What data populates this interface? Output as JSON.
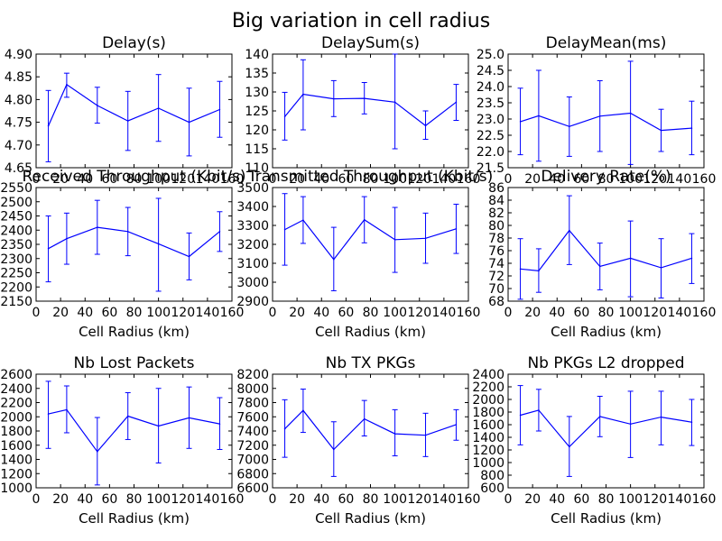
{
  "figure_title": "Big variation in cell radius",
  "series_color": "#0000ff",
  "chart_data": [
    {
      "type": "line",
      "title": "Delay(s)",
      "xlabel": "Cell Radius (km)",
      "ylabel": "",
      "xlim": [
        0,
        160
      ],
      "ylim": [
        4.65,
        4.9
      ],
      "xticks": [
        0,
        20,
        40,
        60,
        80,
        100,
        120,
        140,
        160
      ],
      "yticks": [
        4.65,
        4.7,
        4.75,
        4.8,
        4.85,
        4.9
      ],
      "ytick_labels": [
        "4.65",
        "4.70",
        "4.75",
        "4.80",
        "4.85",
        "4.90"
      ],
      "x": [
        10,
        25,
        50,
        75,
        100,
        125,
        150
      ],
      "y": [
        4.742,
        4.833,
        4.787,
        4.753,
        4.781,
        4.75,
        4.778
      ],
      "err_low": [
        4.663,
        4.805,
        4.748,
        4.688,
        4.708,
        4.676,
        4.717
      ],
      "err_high": [
        4.82,
        4.858,
        4.827,
        4.818,
        4.855,
        4.825,
        4.84
      ],
      "grid": false
    },
    {
      "type": "line",
      "title": "DelaySum(s)",
      "xlabel": "Cell Radius (km)",
      "ylabel": "",
      "xlim": [
        0,
        160
      ],
      "ylim": [
        110,
        140
      ],
      "xticks": [
        0,
        20,
        40,
        60,
        80,
        100,
        120,
        140,
        160
      ],
      "yticks": [
        110,
        115,
        120,
        125,
        130,
        135,
        140
      ],
      "ytick_labels": [
        "110",
        "115",
        "120",
        "125",
        "130",
        "135",
        "140"
      ],
      "x": [
        10,
        25,
        50,
        75,
        100,
        125,
        150
      ],
      "y": [
        123.5,
        129.4,
        128.2,
        128.3,
        127.3,
        121.1,
        127.3
      ],
      "err_low": [
        117.3,
        120.0,
        123.5,
        124.2,
        115.0,
        117.5,
        122.5
      ],
      "err_high": [
        129.9,
        138.5,
        133.0,
        132.5,
        140.0,
        125.0,
        132.0
      ],
      "grid": false
    },
    {
      "type": "line",
      "title": "DelayMean(ms)",
      "xlabel": "Cell Radius (km)",
      "ylabel": "",
      "xlim": [
        0,
        160
      ],
      "ylim": [
        21.5,
        25.0
      ],
      "xticks": [
        0,
        20,
        40,
        60,
        80,
        100,
        120,
        140,
        160
      ],
      "yticks": [
        21.5,
        22.0,
        22.5,
        23.0,
        23.5,
        24.0,
        24.5,
        25.0
      ],
      "ytick_labels": [
        "21.5",
        "22.0",
        "22.5",
        "23.0",
        "23.5",
        "24.0",
        "24.5",
        "25.0"
      ],
      "x": [
        10,
        25,
        50,
        75,
        100,
        125,
        150
      ],
      "y": [
        22.92,
        23.1,
        22.77,
        23.09,
        23.18,
        22.65,
        22.72
      ],
      "err_low": [
        21.9,
        21.7,
        21.85,
        22.0,
        21.6,
        22.0,
        21.9
      ],
      "err_high": [
        23.95,
        24.5,
        23.68,
        24.18,
        24.78,
        23.3,
        23.55
      ],
      "grid": false
    },
    {
      "type": "line",
      "title": "Received Throughput (Kbit/s)",
      "xlabel": "Cell Radius (km)",
      "ylabel": "",
      "xlim": [
        0,
        160
      ],
      "ylim": [
        2150,
        2550
      ],
      "xticks": [
        0,
        20,
        40,
        60,
        80,
        100,
        120,
        140,
        160
      ],
      "yticks": [
        2150,
        2200,
        2250,
        2300,
        2350,
        2400,
        2450,
        2500,
        2550
      ],
      "ytick_labels": [
        "2150",
        "2200",
        "2250",
        "2300",
        "2350",
        "2400",
        "2450",
        "2500",
        "2550"
      ],
      "x": [
        10,
        25,
        50,
        75,
        100,
        125,
        150
      ],
      "y": [
        2335,
        2370,
        2410,
        2395,
        2352,
        2307,
        2395
      ],
      "err_low": [
        2218,
        2280,
        2315,
        2310,
        2185,
        2225,
        2325
      ],
      "err_high": [
        2450,
        2460,
        2505,
        2480,
        2512,
        2390,
        2465
      ],
      "grid": false
    },
    {
      "type": "line",
      "title": "Transmitted Throughput (Kbit/s)",
      "xlabel": "Cell Radius (km)",
      "ylabel": "",
      "xlim": [
        0,
        160
      ],
      "ylim": [
        2900,
        3500
      ],
      "xticks": [
        0,
        20,
        40,
        60,
        80,
        100,
        120,
        140,
        160
      ],
      "yticks": [
        2900,
        3000,
        3100,
        3200,
        3300,
        3400,
        3500
      ],
      "ytick_labels": [
        "2900",
        "3000",
        "3100",
        "3200",
        "3300",
        "3400",
        "3500"
      ],
      "x": [
        10,
        25,
        50,
        75,
        100,
        125,
        150
      ],
      "y": [
        3278,
        3328,
        3120,
        3330,
        3225,
        3232,
        3282
      ],
      "err_low": [
        3090,
        3205,
        2955,
        3208,
        3052,
        3100,
        3152
      ],
      "err_high": [
        3468,
        3452,
        3290,
        3452,
        3395,
        3365,
        3412
      ],
      "grid": false
    },
    {
      "type": "line",
      "title": "Delivery Rate(%)",
      "xlabel": "Cell Radius (km)",
      "ylabel": "",
      "xlim": [
        0,
        160
      ],
      "ylim": [
        68,
        86
      ],
      "xticks": [
        0,
        20,
        40,
        60,
        80,
        100,
        120,
        140,
        160
      ],
      "yticks": [
        68,
        70,
        72,
        74,
        76,
        78,
        80,
        82,
        84,
        86
      ],
      "ytick_labels": [
        "68",
        "70",
        "72",
        "74",
        "76",
        "78",
        "80",
        "82",
        "84",
        "86"
      ],
      "x": [
        10,
        25,
        50,
        75,
        100,
        125,
        150
      ],
      "y": [
        73.1,
        72.8,
        79.2,
        73.5,
        74.8,
        73.3,
        74.8
      ],
      "err_low": [
        68.3,
        69.4,
        73.8,
        69.8,
        68.7,
        68.5,
        70.8
      ],
      "err_high": [
        77.9,
        76.3,
        84.7,
        77.2,
        80.7,
        77.9,
        78.7
      ],
      "grid": false
    },
    {
      "type": "line",
      "title": "Nb Lost Packets",
      "xlabel": "Cell Radius (km)",
      "ylabel": "",
      "xlim": [
        0,
        160
      ],
      "ylim": [
        1000,
        2600
      ],
      "xticks": [
        0,
        20,
        40,
        60,
        80,
        100,
        120,
        140,
        160
      ],
      "yticks": [
        1000,
        1200,
        1400,
        1600,
        1800,
        2000,
        2200,
        2400,
        2600
      ],
      "ytick_labels": [
        "1000",
        "1200",
        "1400",
        "1600",
        "1800",
        "2000",
        "2200",
        "2400",
        "2600"
      ],
      "x": [
        10,
        25,
        50,
        75,
        100,
        125,
        150
      ],
      "y": [
        2040,
        2100,
        1510,
        2010,
        1870,
        1985,
        1900
      ],
      "err_low": [
        1555,
        1775,
        1040,
        1680,
        1350,
        1555,
        1540
      ],
      "err_high": [
        2500,
        2435,
        1990,
        2340,
        2400,
        2420,
        2270
      ],
      "grid": false
    },
    {
      "type": "line",
      "title": "Nb TX PKGs",
      "xlabel": "Cell Radius (km)",
      "ylabel": "",
      "xlim": [
        0,
        160
      ],
      "ylim": [
        6600,
        8200
      ],
      "xticks": [
        0,
        20,
        40,
        60,
        80,
        100,
        120,
        140,
        160
      ],
      "yticks": [
        6600,
        6800,
        7000,
        7200,
        7400,
        7600,
        7800,
        8000,
        8200
      ],
      "ytick_labels": [
        "6600",
        "6800",
        "7000",
        "7200",
        "7400",
        "7600",
        "7800",
        "8000",
        "8200"
      ],
      "x": [
        10,
        25,
        50,
        75,
        100,
        125,
        150
      ],
      "y": [
        7430,
        7690,
        7140,
        7570,
        7360,
        7340,
        7490
      ],
      "err_low": [
        7030,
        7380,
        6760,
        7330,
        7050,
        7040,
        7270
      ],
      "err_high": [
        7840,
        7990,
        7530,
        7830,
        7700,
        7650,
        7700
      ],
      "grid": false
    },
    {
      "type": "line",
      "title": "Nb PKGs L2 dropped",
      "xlabel": "Cell Radius (km)",
      "ylabel": "",
      "xlim": [
        0,
        160
      ],
      "ylim": [
        600,
        2400
      ],
      "xticks": [
        0,
        20,
        40,
        60,
        80,
        100,
        120,
        140,
        160
      ],
      "yticks": [
        600,
        800,
        1000,
        1200,
        1400,
        1600,
        1800,
        2000,
        2200,
        2400
      ],
      "ytick_labels": [
        "600",
        "800",
        "1000",
        "1200",
        "1400",
        "1600",
        "1800",
        "2000",
        "2200",
        "2400"
      ],
      "x": [
        10,
        25,
        50,
        75,
        100,
        125,
        150
      ],
      "y": [
        1750,
        1830,
        1250,
        1730,
        1610,
        1720,
        1640
      ],
      "err_low": [
        1280,
        1500,
        780,
        1410,
        1080,
        1280,
        1270
      ],
      "err_high": [
        2220,
        2160,
        1730,
        2050,
        2130,
        2130,
        2000
      ],
      "grid": false
    }
  ]
}
